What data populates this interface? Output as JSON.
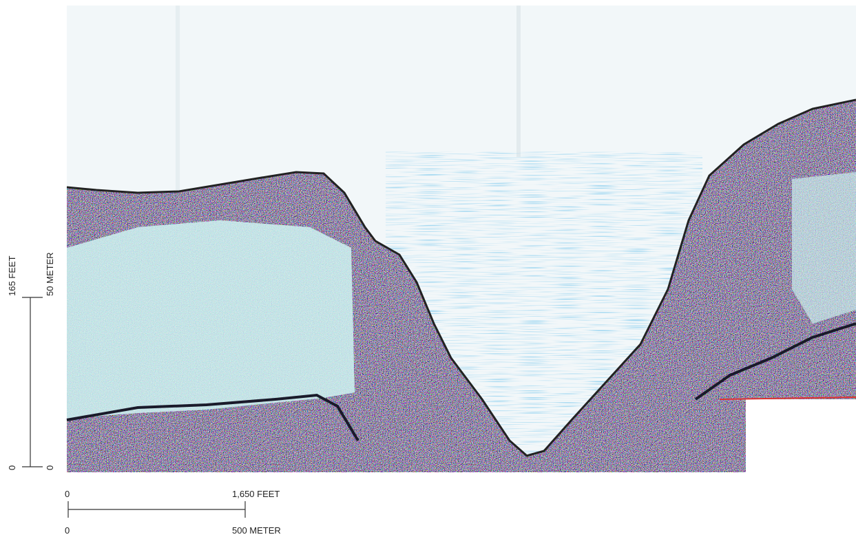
{
  "vertical_scale": {
    "feet_top": "165 FEET",
    "feet_bottom": "0",
    "meter_top": "50 METER",
    "meter_bottom": "0"
  },
  "horizontal_scale": {
    "feet_left": "0",
    "feet_right": "1,650 FEET",
    "meter_left": "0",
    "meter_right": "500 METER"
  }
}
